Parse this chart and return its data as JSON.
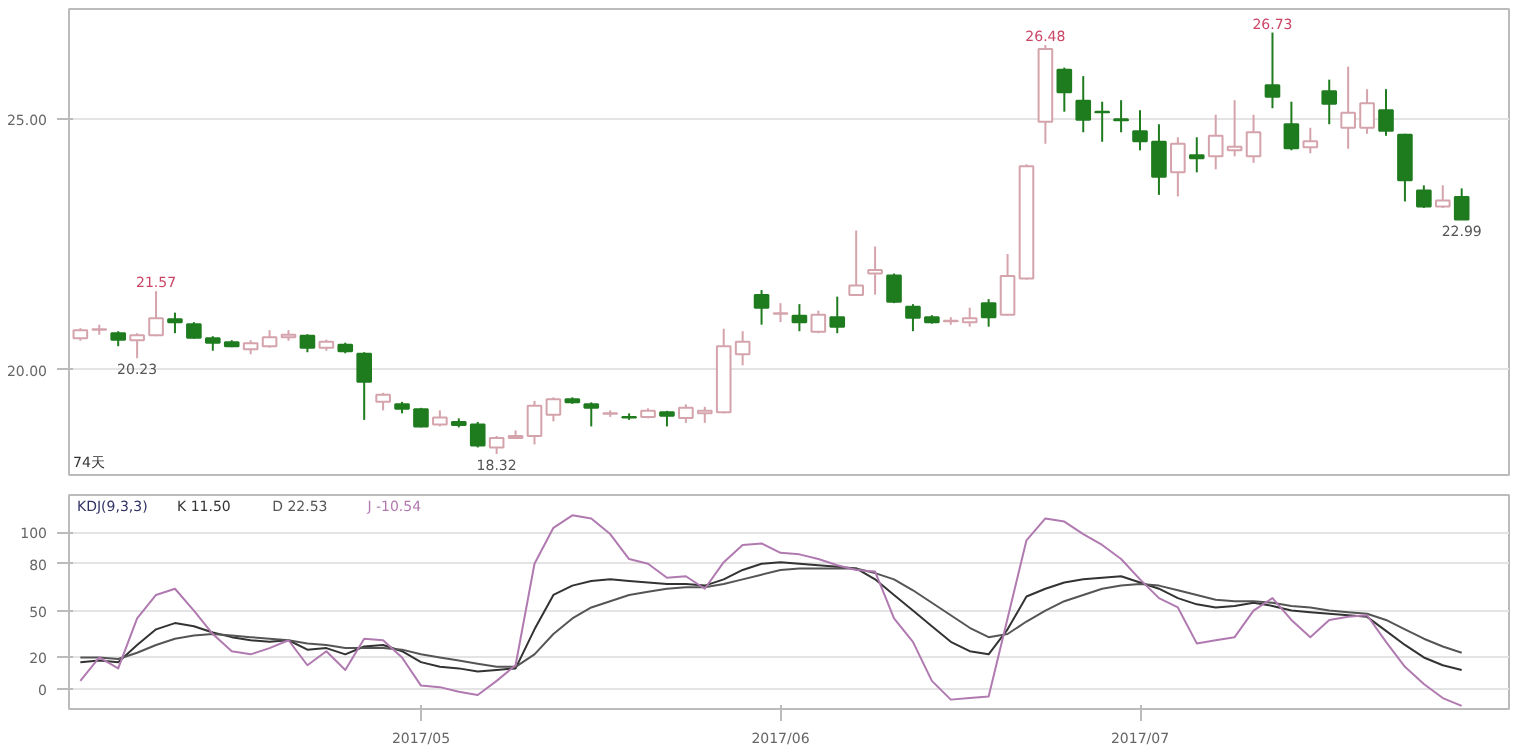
{
  "chart_data": [
    {
      "type": "candlestick",
      "categories": [
        null,
        null,
        null,
        null,
        null,
        null,
        null,
        null,
        null,
        null,
        null,
        null,
        null,
        null,
        null,
        null,
        null,
        null,
        "2017/05",
        null,
        null,
        null,
        null,
        null,
        null,
        null,
        null,
        null,
        null,
        null,
        null,
        null,
        null,
        null,
        null,
        null,
        null,
        "2017/06",
        null,
        null,
        null,
        null,
        null,
        null,
        null,
        null,
        null,
        null,
        null,
        null,
        null,
        null,
        null,
        null,
        null,
        null,
        "2017/07",
        null,
        null,
        null,
        null,
        null,
        null,
        null,
        null,
        null,
        null,
        null,
        null,
        null,
        null,
        null,
        null,
        null
      ],
      "ohlc": [
        [
          20.63,
          20.83,
          20.58,
          20.79
        ],
        [
          20.8,
          20.9,
          20.7,
          20.81
        ],
        [
          20.73,
          20.77,
          20.47,
          20.6
        ],
        [
          20.59,
          20.73,
          20.23,
          20.69
        ],
        [
          20.69,
          21.57,
          20.67,
          21.03
        ],
        [
          21.01,
          21.14,
          20.73,
          20.95
        ],
        [
          20.91,
          20.95,
          20.62,
          20.64
        ],
        [
          20.63,
          20.67,
          20.38,
          20.54
        ],
        [
          20.55,
          20.59,
          20.45,
          20.47
        ],
        [
          20.41,
          20.59,
          20.31,
          20.53
        ],
        [
          20.47,
          20.79,
          20.44,
          20.65
        ],
        [
          20.65,
          20.79,
          20.58,
          20.7
        ],
        [
          20.68,
          20.71,
          20.35,
          20.44
        ],
        [
          20.44,
          20.6,
          20.38,
          20.56
        ],
        [
          20.5,
          20.54,
          20.33,
          20.37
        ],
        [
          20.32,
          20.35,
          19.0,
          19.76
        ],
        [
          19.36,
          19.54,
          19.19,
          19.5
        ],
        [
          19.31,
          19.36,
          19.13,
          19.22
        ],
        [
          19.21,
          19.24,
          18.85,
          18.87
        ],
        [
          18.91,
          19.19,
          18.87,
          19.05
        ],
        [
          18.96,
          19.03,
          18.85,
          18.9
        ],
        [
          18.91,
          18.96,
          18.45,
          18.49
        ],
        [
          18.45,
          18.68,
          18.32,
          18.64
        ],
        [
          18.64,
          18.79,
          18.62,
          18.68
        ],
        [
          18.68,
          19.38,
          18.51,
          19.28
        ],
        [
          19.1,
          19.45,
          18.97,
          19.41
        ],
        [
          19.41,
          19.45,
          19.32,
          19.35
        ],
        [
          19.31,
          19.35,
          18.87,
          19.24
        ],
        [
          19.12,
          19.19,
          19.06,
          19.13
        ],
        [
          19.06,
          19.13,
          19.0,
          19.05
        ],
        [
          19.06,
          19.23,
          19.03,
          19.18
        ],
        [
          19.15,
          19.18,
          18.87,
          19.08
        ],
        [
          19.04,
          19.31,
          18.94,
          19.24
        ],
        [
          19.13,
          19.26,
          18.94,
          19.18
        ],
        [
          19.15,
          20.82,
          19.13,
          20.47
        ],
        [
          20.31,
          20.77,
          20.09,
          20.56
        ],
        [
          21.49,
          21.59,
          20.9,
          21.24
        ],
        [
          21.12,
          21.33,
          20.95,
          21.13
        ],
        [
          21.08,
          21.31,
          20.77,
          20.95
        ],
        [
          20.76,
          21.18,
          20.73,
          21.1
        ],
        [
          21.05,
          21.46,
          20.73,
          20.86
        ],
        [
          21.49,
          22.78,
          21.49,
          21.68
        ],
        [
          21.92,
          22.46,
          21.5,
          21.99
        ],
        [
          21.88,
          21.92,
          21.33,
          21.36
        ],
        [
          21.26,
          21.31,
          20.77,
          21.04
        ],
        [
          21.05,
          21.09,
          20.92,
          20.95
        ],
        [
          20.97,
          21.05,
          20.9,
          20.98
        ],
        [
          20.95,
          21.24,
          20.86,
          21.03
        ],
        [
          21.33,
          21.41,
          20.86,
          21.05
        ],
        [
          21.1,
          22.31,
          21.08,
          21.87
        ],
        [
          21.82,
          24.1,
          21.8,
          24.06
        ],
        [
          24.95,
          26.48,
          24.51,
          26.4
        ],
        [
          25.99,
          26.03,
          25.15,
          25.54
        ],
        [
          25.37,
          25.86,
          24.74,
          24.99
        ],
        [
          25.15,
          25.35,
          24.55,
          25.14
        ],
        [
          25.0,
          25.38,
          24.74,
          24.98
        ],
        [
          24.76,
          25.18,
          24.38,
          24.56
        ],
        [
          24.55,
          24.9,
          23.49,
          23.85
        ],
        [
          23.94,
          24.64,
          23.46,
          24.51
        ],
        [
          24.28,
          24.64,
          23.94,
          24.22
        ],
        [
          24.26,
          25.09,
          24.0,
          24.67
        ],
        [
          24.38,
          25.38,
          24.26,
          24.45
        ],
        [
          24.26,
          25.09,
          24.13,
          24.74
        ],
        [
          25.68,
          26.73,
          25.22,
          25.45
        ],
        [
          24.9,
          25.35,
          24.38,
          24.42
        ],
        [
          24.44,
          24.83,
          24.32,
          24.56
        ],
        [
          25.56,
          25.79,
          24.9,
          25.31
        ],
        [
          24.83,
          26.05,
          24.41,
          25.13
        ],
        [
          24.83,
          25.6,
          24.71,
          25.32
        ],
        [
          25.18,
          25.6,
          24.67,
          24.77
        ],
        [
          24.69,
          24.71,
          23.36,
          23.78
        ],
        [
          23.58,
          23.68,
          23.23,
          23.26
        ],
        [
          23.26,
          23.68,
          23.23,
          23.38
        ],
        [
          23.45,
          23.62,
          22.99,
          23.0
        ]
      ],
      "colors": [
        "#d4a3ab",
        "#d4a3ab",
        "#1e7b1e",
        "#d4a3ab",
        "#d4a3ab",
        "#1e7b1e",
        "#1e7b1e",
        "#1e7b1e",
        "#1e7b1e",
        "#d4a3ab",
        "#d4a3ab",
        "#d4a3ab",
        "#1e7b1e",
        "#d4a3ab",
        "#1e7b1e",
        "#1e7b1e",
        "#d4a3ab",
        "#1e7b1e",
        "#1e7b1e",
        "#d4a3ab",
        "#1e7b1e",
        "#1e7b1e",
        "#d4a3ab",
        "#d4a3ab",
        "#d4a3ab",
        "#d4a3ab",
        "#1e7b1e",
        "#1e7b1e",
        "#d4a3ab",
        "#1e7b1e",
        "#d4a3ab",
        "#1e7b1e",
        "#d4a3ab",
        "#d4a3ab",
        "#d4a3ab",
        "#d4a3ab",
        "#1e7b1e",
        "#d4a3ab",
        "#1e7b1e",
        "#d4a3ab",
        "#1e7b1e",
        "#d4a3ab",
        "#d4a3ab",
        "#1e7b1e",
        "#1e7b1e",
        "#1e7b1e",
        "#d4a3ab",
        "#d4a3ab",
        "#1e7b1e",
        "#d4a3ab",
        "#d4a3ab",
        "#d4a3ab",
        "#1e7b1e",
        "#1e7b1e",
        "#1e7b1e",
        "#1e7b1e",
        "#1e7b1e",
        "#1e7b1e",
        "#d4a3ab",
        "#1e7b1e",
        "#d4a3ab",
        "#d4a3ab",
        "#d4a3ab",
        "#1e7b1e",
        "#1e7b1e",
        "#d4a3ab",
        "#1e7b1e",
        "#d4a3ab",
        "#d4a3ab",
        "#1e7b1e",
        "#1e7b1e",
        "#1e7b1e",
        "#d4a3ab",
        "#1e7b1e"
      ],
      "ylim": [
        17.9,
        27.2
      ],
      "yticks": [
        {
          "value": 20,
          "label": "20.00"
        },
        {
          "value": 25,
          "label": "25.00"
        }
      ],
      "grid": "y",
      "tick_labels": "y",
      "annotations": [
        "74天",
        {
          "text": "21.57",
          "y": 21.57
        },
        {
          "text": "20.23",
          "y": 20.23
        },
        {
          "text": "18.32",
          "y": 18.32
        },
        {
          "text": "26.48",
          "y": 26.48
        },
        {
          "text": "26.73",
          "y": 26.73
        },
        {
          "text": "22.99",
          "y": 22.99
        }
      ]
    },
    {
      "type": "line",
      "title": "KDJ(9,3,3)",
      "categories": [
        null,
        null,
        null,
        null,
        null,
        null,
        null,
        null,
        null,
        null,
        null,
        null,
        null,
        null,
        null,
        null,
        null,
        null,
        "2017/05",
        null,
        null,
        null,
        null,
        null,
        null,
        null,
        null,
        null,
        null,
        null,
        null,
        null,
        null,
        null,
        null,
        null,
        null,
        "2017/06",
        null,
        null,
        null,
        null,
        null,
        null,
        null,
        null,
        null,
        null,
        null,
        null,
        null,
        null,
        null,
        null,
        null,
        null,
        "2017/07",
        null,
        null,
        null,
        null,
        null,
        null,
        null,
        null,
        null,
        null,
        null,
        null,
        null,
        null,
        null,
        null,
        null
      ],
      "series": [
        {
          "name": "K  11.50",
          "color": "#333333",
          "values": [
            17,
            18,
            17,
            28,
            38,
            42,
            40,
            36,
            33,
            31,
            30,
            31,
            25,
            26,
            22,
            27,
            28,
            24,
            17,
            14,
            13,
            11,
            12,
            13,
            38,
            60,
            66,
            69,
            70,
            69,
            68,
            67,
            67,
            66,
            70,
            76,
            80,
            81,
            80,
            79,
            78,
            77,
            70,
            60,
            50,
            40,
            30,
            24,
            22,
            38,
            59,
            64,
            68,
            70,
            71,
            72,
            68,
            64,
            58,
            54,
            52,
            53,
            55,
            53,
            50,
            49,
            48,
            47,
            46,
            37,
            28,
            20,
            15,
            12
          ]
        },
        {
          "name": "D  22.53",
          "color": "#555555",
          "values": [
            20,
            20,
            19,
            23,
            28,
            32,
            34,
            35,
            34,
            33,
            32,
            31,
            29,
            28,
            26,
            26,
            26,
            25,
            22,
            20,
            18,
            16,
            14,
            14,
            22,
            35,
            45,
            52,
            56,
            60,
            62,
            64,
            65,
            65,
            67,
            70,
            73,
            76,
            77,
            77,
            77,
            77,
            74,
            70,
            63,
            55,
            47,
            39,
            33,
            35,
            43,
            50,
            56,
            60,
            64,
            66,
            67,
            66,
            63,
            60,
            57,
            56,
            56,
            55,
            53,
            52,
            50,
            49,
            48,
            44,
            38,
            32,
            27,
            23
          ]
        },
        {
          "name": "J  -10.54",
          "color": "#b07ab0",
          "values": [
            5,
            20,
            13,
            45,
            60,
            64,
            50,
            35,
            24,
            22,
            26,
            31,
            15,
            24,
            12,
            32,
            31,
            20,
            2,
            1,
            -2,
            -4,
            5,
            15,
            80,
            103,
            111,
            109,
            99,
            83,
            80,
            71,
            72,
            64,
            81,
            92,
            93,
            87,
            86,
            83,
            79,
            76,
            75,
            45,
            30,
            5,
            -7,
            -6,
            -5,
            45,
            95,
            109,
            107,
            99,
            92,
            83,
            70,
            58,
            52,
            29,
            31,
            33,
            50,
            58,
            44,
            33,
            44,
            46,
            47,
            30,
            14,
            3,
            -6,
            -11
          ]
        }
      ],
      "ylim": [
        -13,
        124
      ],
      "yticks": [
        0,
        20,
        50,
        80,
        100
      ],
      "grid": "y"
    }
  ]
}
